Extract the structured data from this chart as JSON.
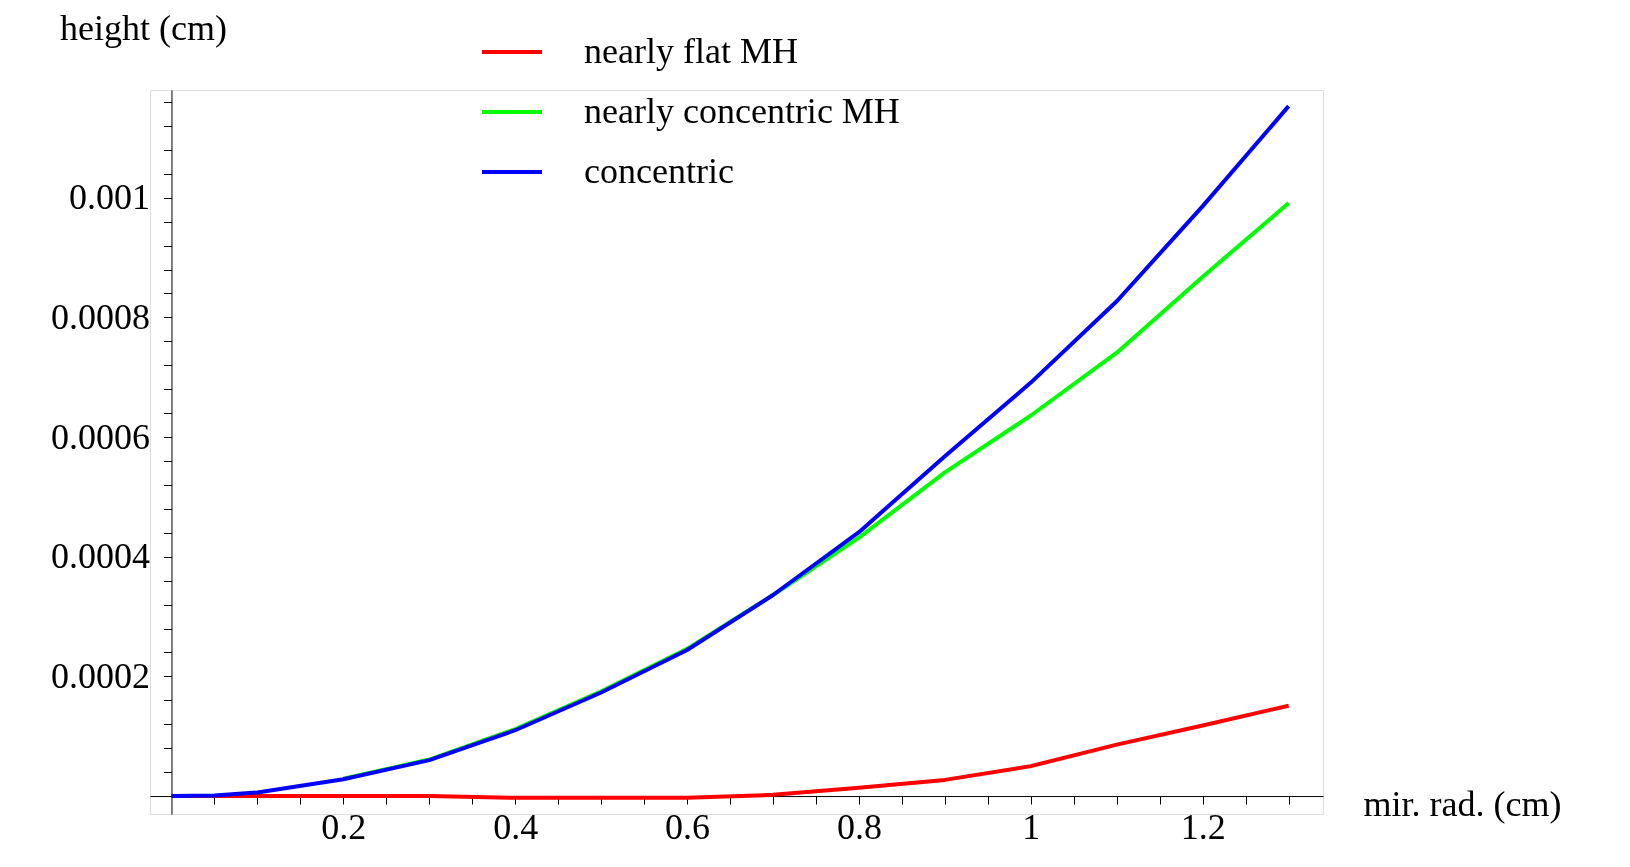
{
  "chart_data": {
    "type": "line",
    "xlabel": "mir. rad. (cm)",
    "ylabel": "height (cm)",
    "xlim": [
      -0.025,
      1.34
    ],
    "ylim": [
      -3e-05,
      0.00118
    ],
    "xticks": [
      {
        "value": 0.05,
        "label": null
      },
      {
        "value": 0.1,
        "label": null
      },
      {
        "value": 0.15,
        "label": null
      },
      0.2,
      {
        "value": 0.25,
        "label": null
      },
      {
        "value": 0.3,
        "label": null
      },
      {
        "value": 0.35,
        "label": null
      },
      0.4,
      {
        "value": 0.45,
        "label": null
      },
      {
        "value": 0.5,
        "label": null
      },
      {
        "value": 0.55,
        "label": null
      },
      0.6,
      {
        "value": 0.65,
        "label": null
      },
      {
        "value": 0.7,
        "label": null
      },
      {
        "value": 0.75,
        "label": null
      },
      0.8,
      {
        "value": 0.85,
        "label": null
      },
      {
        "value": 0.9,
        "label": null
      },
      {
        "value": 0.95,
        "label": null
      },
      1,
      {
        "value": 1.05,
        "label": null
      },
      {
        "value": 1.1,
        "label": null
      },
      {
        "value": 1.15,
        "label": null
      },
      1.2,
      {
        "value": 1.25,
        "label": null
      },
      {
        "value": 1.3,
        "label": null
      }
    ],
    "yticks": [
      {
        "value": 4e-05,
        "label": null
      },
      {
        "value": 8e-05,
        "label": null
      },
      {
        "value": 0.00012,
        "label": null
      },
      {
        "value": 0.00016,
        "label": null
      },
      0.0002,
      {
        "value": 0.00024,
        "label": null
      },
      {
        "value": 0.00028,
        "label": null
      },
      {
        "value": 0.00032,
        "label": null
      },
      {
        "value": 0.00036,
        "label": null
      },
      0.0004,
      {
        "value": 0.00044,
        "label": null
      },
      {
        "value": 0.00048,
        "label": null
      },
      {
        "value": 0.00052,
        "label": null
      },
      {
        "value": 0.00056,
        "label": null
      },
      0.0006,
      {
        "value": 0.00064,
        "label": null
      },
      {
        "value": 0.00068,
        "label": null
      },
      {
        "value": 0.00072,
        "label": null
      },
      {
        "value": 0.00076,
        "label": null
      },
      0.0008,
      {
        "value": 0.00084,
        "label": null
      },
      {
        "value": 0.00088,
        "label": null
      },
      {
        "value": 0.00092,
        "label": null
      },
      {
        "value": 0.00096,
        "label": null
      },
      0.001,
      {
        "value": 0.00104,
        "label": null
      },
      {
        "value": 0.00108,
        "label": null
      },
      {
        "value": 0.00112,
        "label": null
      },
      {
        "value": 0.00116,
        "label": null
      }
    ],
    "x": [
      0,
      0.05,
      0.1,
      0.2,
      0.3,
      0.4,
      0.5,
      0.6,
      0.7,
      0.8,
      0.9,
      1.0,
      1.1,
      1.2,
      1.3
    ],
    "series": [
      {
        "name": "nearly  flat  MH",
        "color": "#ff0000",
        "values": [
          0,
          0,
          0,
          0,
          0,
          -3e-06,
          -3e-06,
          -3e-06,
          2e-06,
          1.4e-05,
          2.7e-05,
          5e-05,
          8.6e-05,
          0.000118,
          0.000151
        ]
      },
      {
        "name": "nearly  concentric   MH",
        "color": "#00ff00",
        "values": [
          null,
          null,
          null,
          2.9e-05,
          6.1e-05,
          0.000112,
          0.000175,
          0.000246,
          0.000336,
          0.000432,
          0.000541,
          0.000636,
          0.000741,
          0.000868,
          0.000991
        ]
      },
      {
        "name": "concentric",
        "color": "#0000ff",
        "values": [
          0,
          1e-06,
          6e-06,
          2.8e-05,
          6e-05,
          0.00011,
          0.000173,
          0.000244,
          0.000336,
          0.000441,
          0.000568,
          0.000691,
          0.000827,
          0.000986,
          0.001153
        ]
      }
    ],
    "legend": "top",
    "marker": "none",
    "line_style": "solid",
    "grid": false
  }
}
